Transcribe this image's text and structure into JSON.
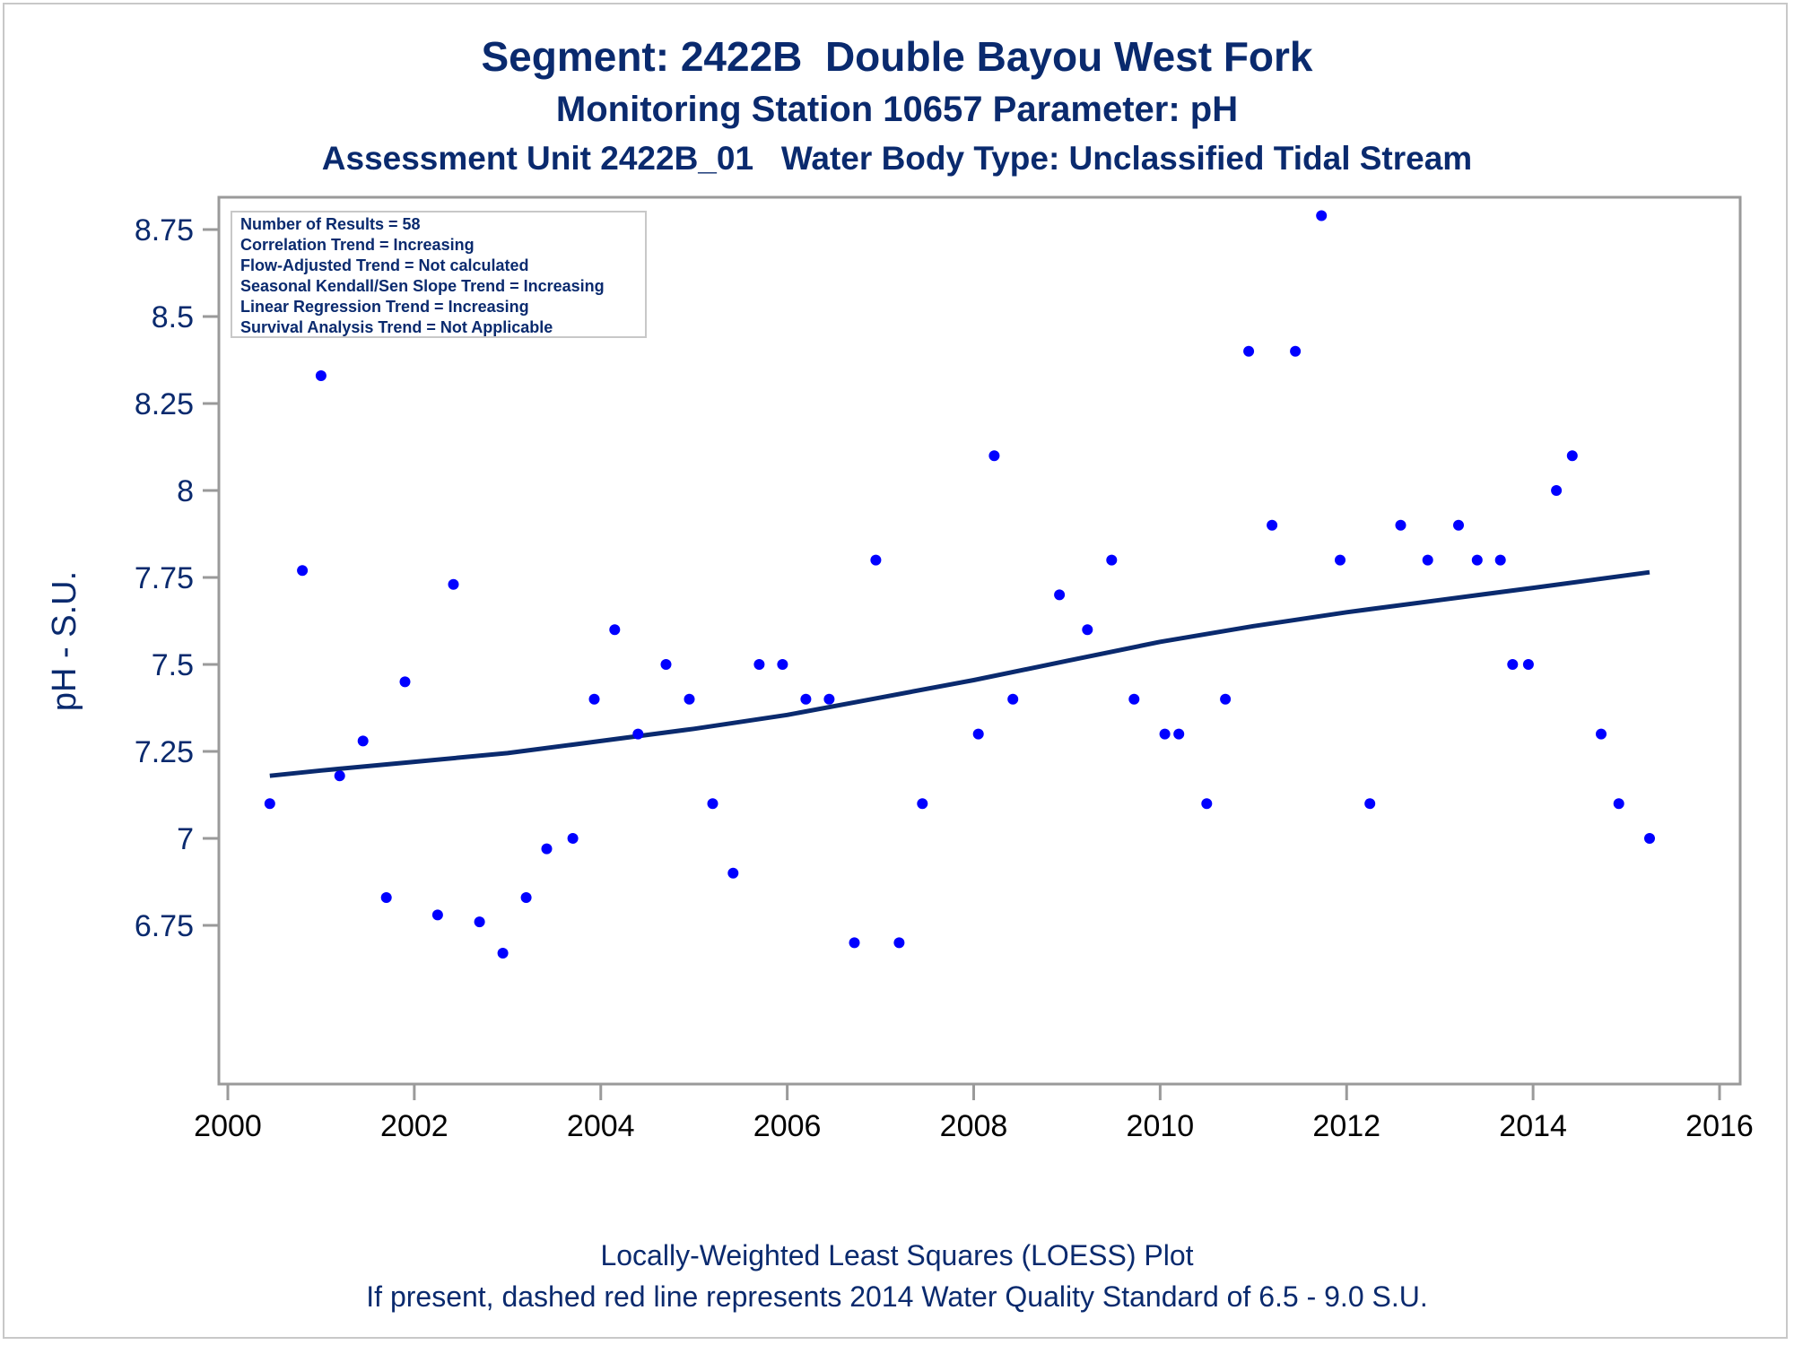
{
  "titles": {
    "line1": "Segment: 2422B  Double Bayou West Fork",
    "line2": "Monitoring Station 10657 Parameter: pH",
    "line3": "Assessment Unit 2422B_01   Water Body Type: Unclassified Tidal Stream"
  },
  "footnotes": {
    "line1": "Locally-Weighted Least Squares (LOESS) Plot",
    "line2": "If present, dashed red line represents 2014 Water Quality Standard of 6.5 - 9.0 S.U."
  },
  "stats_box": [
    "Number of Results = 58",
    "Correlation Trend = Increasing",
    "Flow-Adjusted Trend = Not calculated",
    "Seasonal Kendall/Sen Slope Trend = Increasing",
    "Linear Regression Trend = Increasing",
    "Survival Analysis Trend = Not Applicable"
  ],
  "colors": {
    "points": "#0000ff",
    "loess": "#0a2a6e",
    "text": "#0a2a6e",
    "axis": "#9a9a9a"
  },
  "chart_data": {
    "type": "scatter",
    "title": "Segment: 2422B  Double Bayou West Fork",
    "xlabel": "",
    "ylabel": "pH - S.U.",
    "xlim": [
      2000,
      2016
    ],
    "ylim": [
      6.65,
      8.8
    ],
    "xticks": [
      2000,
      2002,
      2004,
      2006,
      2008,
      2010,
      2012,
      2014,
      2016
    ],
    "yticks": [
      6.75,
      7,
      7.25,
      7.5,
      7.75,
      8,
      8.25,
      8.5,
      8.75
    ],
    "ytick_labels": [
      "6.75",
      "7",
      "7.25",
      "7.5",
      "7.75",
      "8",
      "8.25",
      "8.5",
      "8.75"
    ],
    "grid": false,
    "series": [
      {
        "type": "scatter",
        "x": [
          2000.45,
          2000.8,
          2001.0,
          2001.2,
          2001.45,
          2001.7,
          2001.9,
          2002.25,
          2002.42,
          2002.7,
          2002.95,
          2003.2,
          2003.42,
          2003.7,
          2003.93,
          2004.15,
          2004.4,
          2004.7,
          2004.95,
          2005.2,
          2005.42,
          2005.7,
          2005.95,
          2006.2,
          2006.45,
          2006.72,
          2006.95,
          2007.2,
          2007.45,
          2008.05,
          2008.22,
          2008.42,
          2008.92,
          2009.22,
          2009.48,
          2009.72,
          2010.05,
          2010.2,
          2010.5,
          2010.7,
          2010.95,
          2011.2,
          2011.45,
          2011.73,
          2011.93,
          2012.25,
          2012.58,
          2012.87,
          2013.2,
          2013.4,
          2013.65,
          2013.78,
          2013.95,
          2014.25,
          2014.42,
          2014.73,
          2014.92,
          2015.25
        ],
        "y": [
          7.1,
          7.77,
          8.33,
          7.18,
          7.28,
          6.83,
          7.45,
          6.78,
          7.73,
          6.76,
          6.67,
          6.83,
          6.97,
          7.0,
          7.4,
          7.6,
          7.3,
          7.5,
          7.4,
          7.1,
          6.9,
          7.5,
          7.5,
          7.4,
          7.4,
          6.7,
          7.8,
          6.7,
          7.1,
          7.3,
          8.1,
          7.4,
          7.7,
          7.6,
          7.8,
          7.4,
          7.3,
          7.3,
          7.1,
          7.4,
          8.4,
          7.9,
          8.4,
          8.79,
          7.8,
          7.1,
          7.9,
          7.8,
          7.9,
          7.8,
          7.8,
          7.5,
          7.5,
          8.0,
          8.1,
          7.3,
          7.1,
          7.0
        ]
      },
      {
        "type": "line",
        "x": [
          2000.45,
          2001.0,
          2002.0,
          2003.0,
          2004.0,
          2005.0,
          2006.0,
          2007.0,
          2008.0,
          2009.0,
          2010.0,
          2011.0,
          2012.0,
          2013.0,
          2014.0,
          2015.25
        ],
        "y": [
          7.18,
          7.195,
          7.22,
          7.245,
          7.28,
          7.315,
          7.355,
          7.405,
          7.455,
          7.51,
          7.565,
          7.61,
          7.65,
          7.685,
          7.72,
          7.765
        ]
      }
    ]
  }
}
